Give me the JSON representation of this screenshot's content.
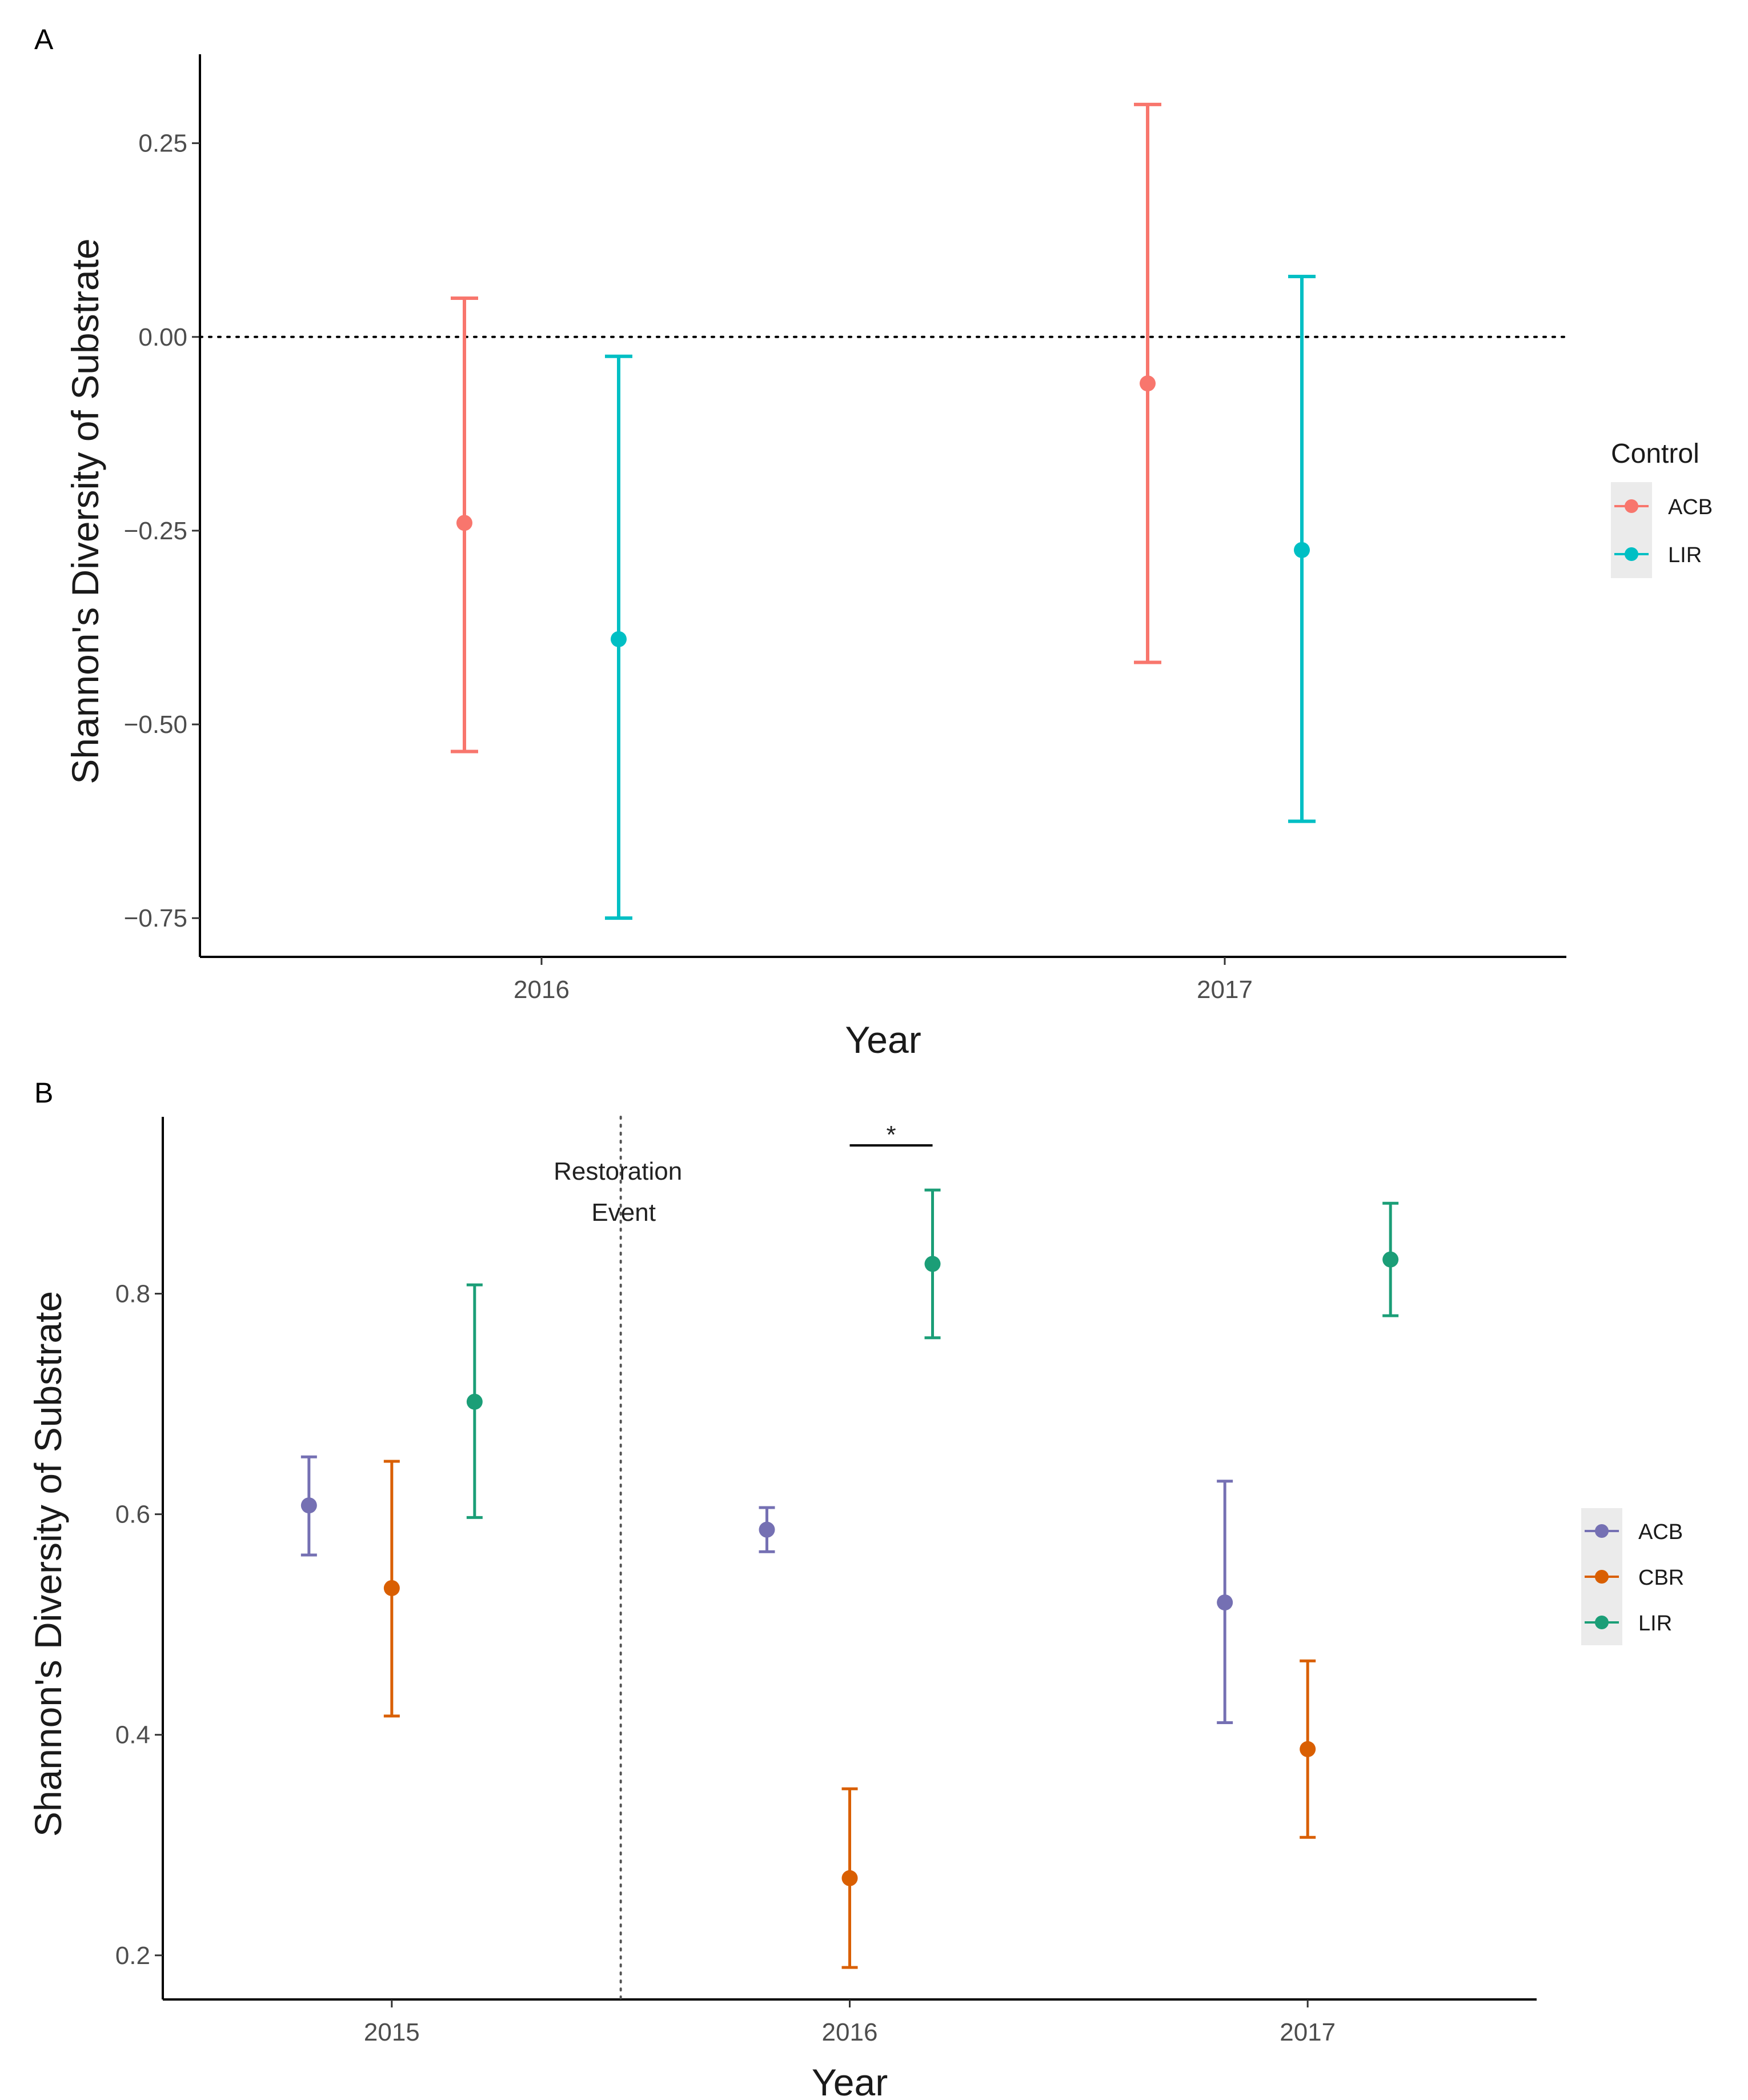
{
  "chart_data": [
    {
      "panel": "A",
      "type": "scatter",
      "subtype": "point-errorbar",
      "title": "",
      "xlabel": "Year",
      "ylabel": "Shannon's Diversity of Substrate",
      "categories": [
        "2016",
        "2017"
      ],
      "ylim": [
        -0.8,
        0.35
      ],
      "yticks": [
        0.25,
        0.0,
        -0.25,
        -0.5,
        -0.75
      ],
      "ytick_labels": [
        "0.25",
        "0.00",
        "−0.25",
        "−0.50",
        "−0.75"
      ],
      "reference_line": {
        "y": 0.0,
        "style": "dotted"
      },
      "legend": {
        "title": "Control",
        "position": "right"
      },
      "grid": false,
      "series": [
        {
          "name": "ACB",
          "color": "#F8766D",
          "points": [
            {
              "x": "2016",
              "y": -0.24,
              "ymin": -0.535,
              "ymax": 0.05
            },
            {
              "x": "2017",
              "y": -0.06,
              "ymin": -0.42,
              "ymax": 0.3
            }
          ]
        },
        {
          "name": "LIR",
          "color": "#00BFC4",
          "points": [
            {
              "x": "2016",
              "y": -0.39,
              "ymin": -0.75,
              "ymax": -0.025
            },
            {
              "x": "2017",
              "y": -0.275,
              "ymin": -0.625,
              "ymax": 0.078
            }
          ]
        }
      ]
    },
    {
      "panel": "B",
      "type": "scatter",
      "subtype": "point-errorbar",
      "title": "",
      "xlabel": "Year",
      "ylabel": "Shannon's Diversity of Substrate",
      "categories": [
        "2015",
        "2016",
        "2017"
      ],
      "ylim": [
        0.16,
        0.95
      ],
      "yticks": [
        0.8,
        0.6,
        0.4,
        0.2
      ],
      "ytick_labels": [
        "0.8",
        "0.6",
        "0.4",
        "0.2"
      ],
      "event_line": {
        "between": [
          "2015",
          "2016"
        ],
        "style": "dotted",
        "label_lines": [
          "Restoration",
          "Event"
        ]
      },
      "significance": {
        "label": "*",
        "year": "2016",
        "from_series": "CBR",
        "to_series": "LIR"
      },
      "legend": {
        "title": "",
        "position": "right"
      },
      "grid": false,
      "series": [
        {
          "name": "ACB",
          "color": "#7570B3",
          "points": [
            {
              "x": "2015",
              "y": 0.608,
              "ymin": 0.563,
              "ymax": 0.652
            },
            {
              "x": "2016",
              "y": 0.586,
              "ymin": 0.566,
              "ymax": 0.606
            },
            {
              "x": "2017",
              "y": 0.52,
              "ymin": 0.411,
              "ymax": 0.63
            }
          ]
        },
        {
          "name": "CBR",
          "color": "#D95F02",
          "points": [
            {
              "x": "2015",
              "y": 0.533,
              "ymin": 0.417,
              "ymax": 0.648
            },
            {
              "x": "2016",
              "y": 0.27,
              "ymin": 0.189,
              "ymax": 0.351
            },
            {
              "x": "2017",
              "y": 0.387,
              "ymin": 0.307,
              "ymax": 0.467
            }
          ]
        },
        {
          "name": "LIR",
          "color": "#1B9E77",
          "points": [
            {
              "x": "2015",
              "y": 0.702,
              "ymin": 0.597,
              "ymax": 0.808
            },
            {
              "x": "2016",
              "y": 0.827,
              "ymin": 0.76,
              "ymax": 0.894
            },
            {
              "x": "2017",
              "y": 0.831,
              "ymin": 0.78,
              "ymax": 0.882
            }
          ]
        }
      ]
    }
  ]
}
